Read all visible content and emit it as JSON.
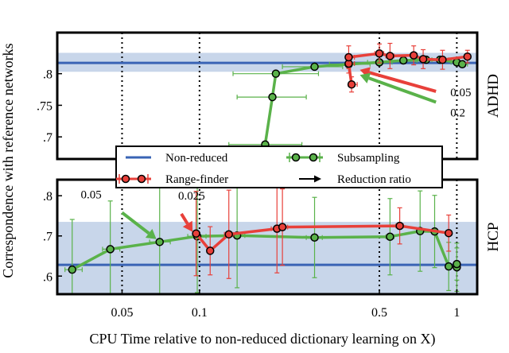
{
  "chart_data": {
    "type": "line",
    "xlabel": "CPU Time relative to non-reduced dictionary learning on X)",
    "ylabel": "Correspondence with reference networks",
    "x_scale": "log",
    "xlim": [
      0.028,
      1.2
    ],
    "x_ticks": [
      {
        "value": 0.05,
        "label": "0.05"
      },
      {
        "value": 0.1,
        "label": "0.1"
      },
      {
        "value": 0.5,
        "label": "0.5"
      },
      {
        "value": 1,
        "label": "1"
      }
    ],
    "vertical_reference_lines": [
      0.05,
      0.1,
      0.5,
      1
    ],
    "legend": {
      "placement": "center",
      "entries": [
        {
          "label": "Non-reduced",
          "kind": "line",
          "color": "#3a64b5"
        },
        {
          "label": "Subsampling",
          "kind": "errorbar-marker",
          "color": "#5ab24a"
        },
        {
          "label": "Range-finder",
          "kind": "errorbar-marker",
          "color": "#e8403a"
        },
        {
          "label": "Reduction ratio",
          "kind": "arrow",
          "color": "#000000"
        }
      ]
    },
    "colors": {
      "non_reduced": "#3a64b5",
      "band": "#c8d6ea",
      "subsampling": "#5ab24a",
      "range_finder": "#e8403a",
      "marker_edge": "#000000"
    },
    "panels": [
      {
        "name": "ADHD",
        "ylim": [
          0.665,
          0.865
        ],
        "y_ticks": [
          {
            "value": 0.7,
            "label": ".7"
          },
          {
            "value": 0.75,
            "label": ".75"
          },
          {
            "value": 0.8,
            "label": ".8"
          }
        ],
        "non_reduced": {
          "value": 0.817,
          "band": [
            0.803,
            0.833
          ]
        },
        "series": [
          {
            "name": "Subsampling",
            "points": [
              {
                "x": 0.18,
                "y": 0.688,
                "xerr": [
                  0.13,
                  0.25
                ],
                "yerr": 0.0
              },
              {
                "x": 0.192,
                "y": 0.763,
                "xerr": [
                  0.14,
                  0.26
                ],
                "yerr": 0.0
              },
              {
                "x": 0.198,
                "y": 0.8,
                "xerr": [
                  0.135,
                  0.29
                ],
                "yerr": 0.0
              },
              {
                "x": 0.28,
                "y": 0.811,
                "xerr": [
                  0.21,
                  0.36
                ],
                "yerr": 0.0
              },
              {
                "x": 0.38,
                "y": 0.815,
                "xerr": [
                  0.32,
                  0.46
                ],
                "yerr": 0.0
              },
              {
                "x": 0.5,
                "y": 0.818,
                "xerr": [
                  0.45,
                  0.56
                ],
                "yerr": 0.0
              },
              {
                "x": 0.62,
                "y": 0.821,
                "xerr": [
                  0.56,
                  0.7
                ],
                "yerr": 0.0
              },
              {
                "x": 0.76,
                "y": 0.822,
                "xerr": [
                  0.69,
                  0.86
                ],
                "yerr": 0.0
              },
              {
                "x": 0.86,
                "y": 0.822,
                "xerr": [
                  0.8,
                  0.93
                ],
                "yerr": 0.0
              },
              {
                "x": 1.0,
                "y": 0.818,
                "xerr": [
                  0.95,
                  1.06
                ],
                "yerr": 0.0
              },
              {
                "x": 1.05,
                "y": 0.815,
                "xerr": [
                  1.0,
                  1.1
                ],
                "yerr": 0.0
              }
            ]
          },
          {
            "name": "Range-finder",
            "points": [
              {
                "x": 0.39,
                "y": 0.783,
                "xerr": [
                  0.38,
                  0.41
                ],
                "yerr": 0.012
              },
              {
                "x": 0.38,
                "y": 0.816,
                "xerr": [
                  0.37,
                  0.4
                ],
                "yerr": 0.015
              },
              {
                "x": 0.38,
                "y": 0.826,
                "xerr": [
                  0.37,
                  0.4
                ],
                "yerr": 0.018
              },
              {
                "x": 0.5,
                "y": 0.832,
                "xerr": [
                  0.48,
                  0.52
                ],
                "yerr": 0.015
              },
              {
                "x": 0.55,
                "y": 0.828,
                "xerr": [
                  0.53,
                  0.57
                ],
                "yerr": 0.02
              },
              {
                "x": 0.68,
                "y": 0.829,
                "xerr": [
                  0.66,
                  0.7
                ],
                "yerr": 0.015
              },
              {
                "x": 0.74,
                "y": 0.823,
                "xerr": [
                  0.72,
                  0.76
                ],
                "yerr": 0.015
              },
              {
                "x": 0.88,
                "y": 0.822,
                "xerr": [
                  0.86,
                  0.9
                ],
                "yerr": 0.015
              },
              {
                "x": 1.1,
                "y": 0.827,
                "xerr": [
                  1.08,
                  1.12
                ],
                "yerr": 0.01
              }
            ]
          }
        ],
        "arrows": [
          {
            "label": "0.05",
            "color": "#e8403a",
            "from": [
              0.83,
              0.772
            ],
            "to": [
              0.42,
              0.806
            ]
          },
          {
            "label": "0.2",
            "color": "#5ab24a",
            "from": [
              0.83,
              0.755
            ],
            "to": [
              0.42,
              0.798
            ]
          }
        ]
      },
      {
        "name": "HCP",
        "ylim": [
          0.555,
          0.84
        ],
        "y_ticks": [
          {
            "value": 0.6,
            "label": ".6"
          },
          {
            "value": 0.7,
            "label": ".7"
          },
          {
            "value": 0.8,
            "label": ".8"
          }
        ],
        "non_reduced": {
          "value": 0.628,
          "band": [
            0.53,
            0.735
          ]
        },
        "series": [
          {
            "name": "Subsampling",
            "points": [
              {
                "x": 0.032,
                "y": 0.616,
                "xerr": [
                  0.03,
                  0.035
                ],
                "yerr": 0.125
              },
              {
                "x": 0.045,
                "y": 0.667,
                "xerr": [
                  0.042,
                  0.049
                ],
                "yerr": 0.12
              },
              {
                "x": 0.07,
                "y": 0.685,
                "xerr": [
                  0.064,
                  0.077
                ],
                "yerr": 0.135
              },
              {
                "x": 0.098,
                "y": 0.699,
                "xerr": [
                  0.09,
                  0.106
                ],
                "yerr": 0.14
              },
              {
                "x": 0.14,
                "y": 0.701,
                "xerr": [
                  0.13,
                  0.15
                ],
                "yerr": 0.13
              },
              {
                "x": 0.28,
                "y": 0.696,
                "xerr": [
                  0.26,
                  0.3
                ],
                "yerr": 0.1
              },
              {
                "x": 0.55,
                "y": 0.698,
                "xerr": [
                  0.53,
                  0.57
                ],
                "yerr": 0.095
              },
              {
                "x": 0.72,
                "y": 0.712,
                "xerr": [
                  0.7,
                  0.74
                ],
                "yerr": 0.1
              },
              {
                "x": 0.82,
                "y": 0.711,
                "xerr": [
                  0.8,
                  0.84
                ],
                "yerr": 0.09
              },
              {
                "x": 0.93,
                "y": 0.624,
                "xerr": [
                  0.91,
                  0.95
                ],
                "yerr": 0.06
              },
              {
                "x": 1.0,
                "y": 0.622,
                "xerr": [
                  0.98,
                  1.02
                ],
                "yerr": 0.06
              },
              {
                "x": 1.0,
                "y": 0.63,
                "xerr": [
                  0.98,
                  1.02
                ],
                "yerr": 0.04
              }
            ]
          },
          {
            "name": "Range-finder",
            "points": [
              {
                "x": 0.097,
                "y": 0.706,
                "xerr": [
                  0.094,
                  0.1
                ],
                "yerr": 0.105
              },
              {
                "x": 0.11,
                "y": 0.663,
                "xerr": [
                  0.107,
                  0.113
                ],
                "yerr": 0.06
              },
              {
                "x": 0.13,
                "y": 0.704,
                "xerr": [
                  0.125,
                  0.135
                ],
                "yerr": 0.11
              },
              {
                "x": 0.2,
                "y": 0.718,
                "xerr": [
                  0.19,
                  0.21
                ],
                "yerr": 0.11
              },
              {
                "x": 0.21,
                "y": 0.722,
                "xerr": [
                  0.2,
                  0.22
                ],
                "yerr": 0.095
              },
              {
                "x": 0.6,
                "y": 0.725,
                "xerr": [
                  0.58,
                  0.62
                ],
                "yerr": 0.045
              },
              {
                "x": 0.93,
                "y": 0.707,
                "xerr": [
                  0.91,
                  0.95
                ],
                "yerr": 0.045
              }
            ]
          }
        ],
        "arrows": [
          {
            "label": "0.05",
            "color": "#5ab24a",
            "from": [
              0.05,
              0.758
            ],
            "to": [
              0.068,
              0.692
            ]
          },
          {
            "label": "0.025",
            "color": "#e8403a",
            "from": [
              0.085,
              0.755
            ],
            "to": [
              0.094,
              0.71
            ]
          }
        ]
      }
    ]
  }
}
